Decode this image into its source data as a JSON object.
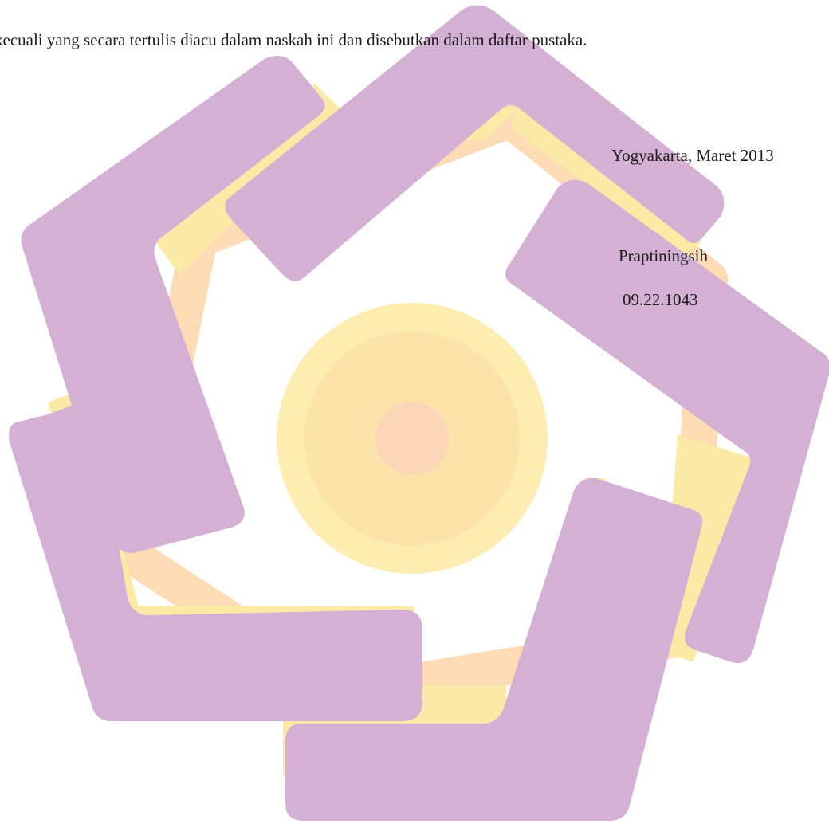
{
  "document": {
    "body_line": "kecuali yang secara tertulis diacu dalam naskah ini dan disebutkan dalam daftar pustaka.",
    "place_date": "Yogyakarta, Maret 2013",
    "signer_name": "Praptiningsih",
    "signer_id": "09.22.1043"
  },
  "watermark": {
    "icon": "university-logo-watermark",
    "colors": {
      "purple": "#d4b1d4",
      "purple_shade": "#d9a8dc",
      "yellow": "#fbe9a6",
      "peach": "#fcd5a8",
      "center": "#fcd6b8"
    }
  }
}
